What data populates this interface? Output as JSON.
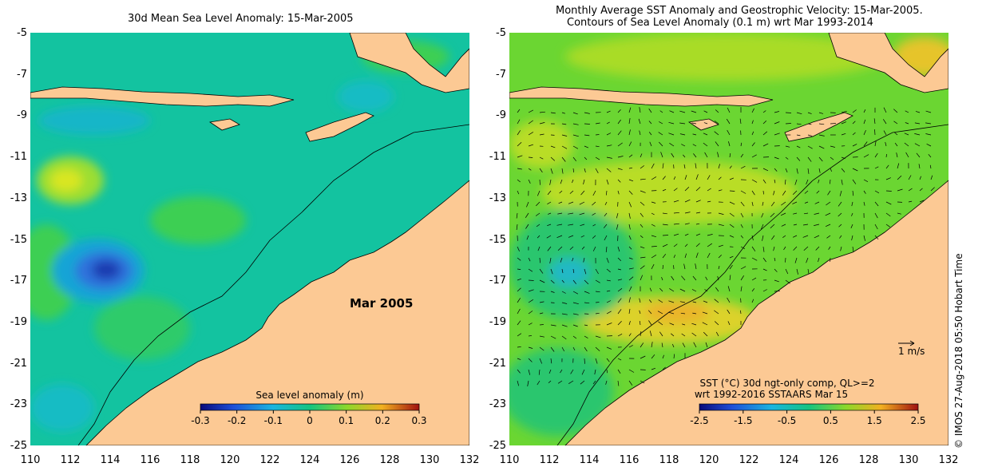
{
  "left": {
    "title": "30d Mean Sea Level Anomaly: 15-Mar-2005",
    "month_label": "Mar 2005",
    "colorbar": {
      "label": "Sea level anomaly (m)",
      "ticks": [
        "-0.3",
        "-0.2",
        "-0.1",
        "0",
        "0.1",
        "0.2",
        "0.3"
      ]
    }
  },
  "right": {
    "title_line1": "Monthly Average SST Anomaly  and Geostrophic Velocity: 15-Mar-2005.",
    "title_line2": "Contours of Sea Level Anomaly (0.1 m) wrt Mar 1993-2014",
    "scale_label": "1 m/s",
    "colorbar": {
      "label_line1": "SST (°C) 30d ngt-only comp, QL>=2",
      "label_line2": "wrt 1992-2016 SSTAARS Mar 15",
      "ticks": [
        "-2.5",
        "-1.5",
        "-0.5",
        "0.5",
        "1.5",
        "2.5"
      ]
    }
  },
  "axes": {
    "y_ticks": [
      "-5",
      "-7",
      "-9",
      "-11",
      "-13",
      "-15",
      "-17",
      "-19",
      "-21",
      "-23",
      "-25"
    ],
    "x_ticks": [
      "110",
      "112",
      "114",
      "116",
      "118",
      "120",
      "122",
      "124",
      "126",
      "128",
      "130",
      "132"
    ]
  },
  "credit": "© IMOS 27-Aug-2018 05:50 Hobart Time",
  "colors": {
    "land": "#fcc994",
    "sea_base_left": "#13c3a0",
    "sea_base_right": "#58d23a"
  }
}
